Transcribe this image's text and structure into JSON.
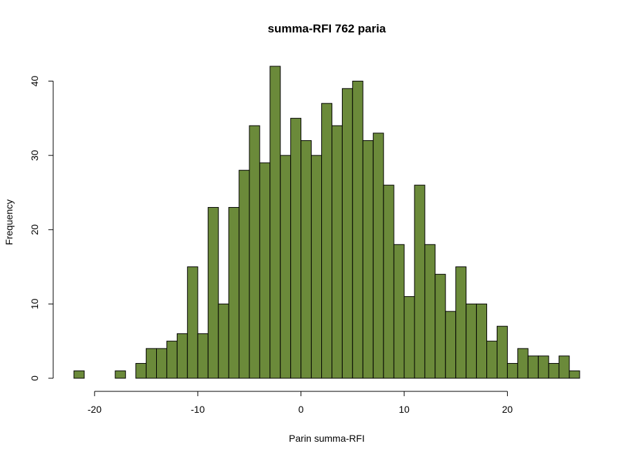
{
  "chart_data": {
    "type": "bar",
    "title": "summa-RFI 762 paria",
    "xlabel": "Parin summa-RFI",
    "ylabel": "Frequency",
    "bar_color": "#6b8a3a",
    "border_color": "#000000",
    "bin_width": 1,
    "bin_start": -22,
    "counts": [
      1,
      0,
      0,
      0,
      1,
      0,
      2,
      4,
      4,
      5,
      6,
      15,
      6,
      23,
      10,
      23,
      28,
      34,
      29,
      42,
      30,
      35,
      32,
      30,
      37,
      34,
      39,
      40,
      32,
      33,
      26,
      18,
      11,
      26,
      18,
      14,
      9,
      15,
      10,
      10,
      5,
      7,
      2,
      4,
      3,
      3,
      2,
      3,
      1
    ],
    "xlim": [
      -22,
      27
    ],
    "ylim": [
      0,
      42
    ],
    "xticks": [
      -20,
      -10,
      0,
      10,
      20
    ],
    "yticks": [
      0,
      10,
      20,
      30,
      40
    ],
    "grid": false
  }
}
